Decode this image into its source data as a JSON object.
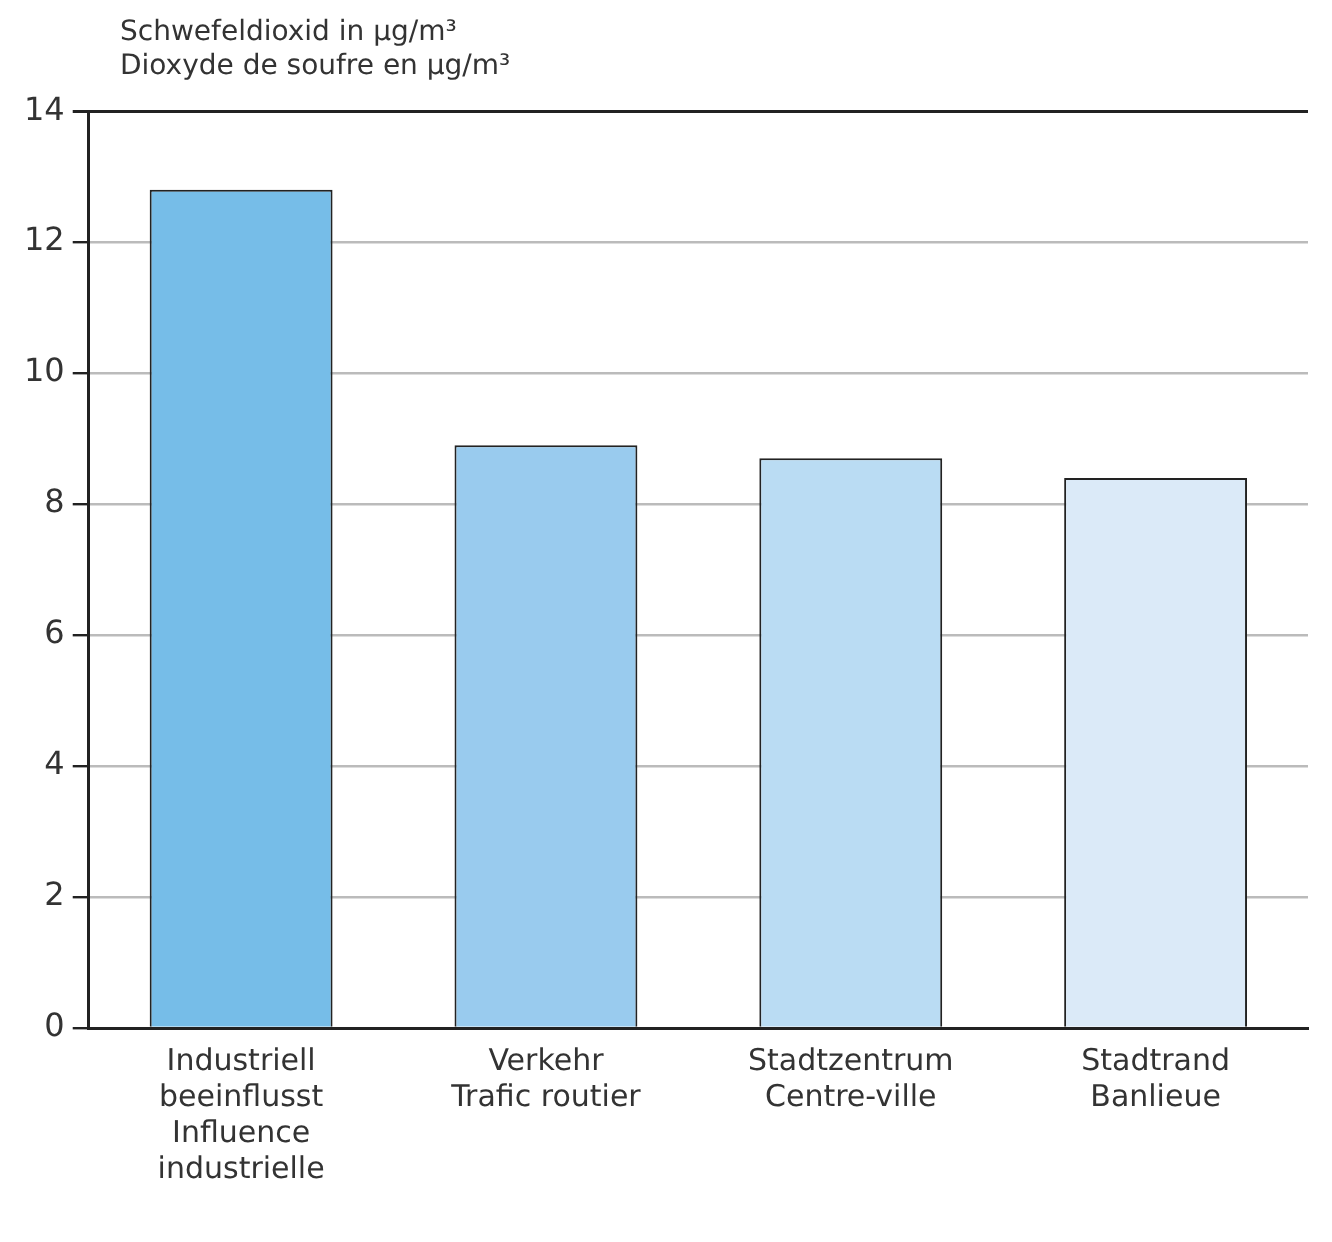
{
  "chart_data": {
    "type": "bar",
    "ylabel": "Schwefeldioxid in µg/m³\nDioxyde de soufre en µg/m³",
    "categories": [
      "Industriell\nbeeinflusst\nInfluence\nindustrielle",
      "Verkehr\nTrafic routier",
      "Stadtzentrum\nCentre-ville",
      "Stadtrand\nBanlieue"
    ],
    "values": [
      12.8,
      8.9,
      8.7,
      8.4
    ],
    "colors": [
      "#76bde8",
      "#99cbee",
      "#badcf3",
      "#dbeaf8"
    ],
    "ylim": [
      0,
      14
    ],
    "yticks": [
      0,
      2,
      4,
      6,
      8,
      10,
      12,
      14
    ],
    "grid": "y"
  }
}
